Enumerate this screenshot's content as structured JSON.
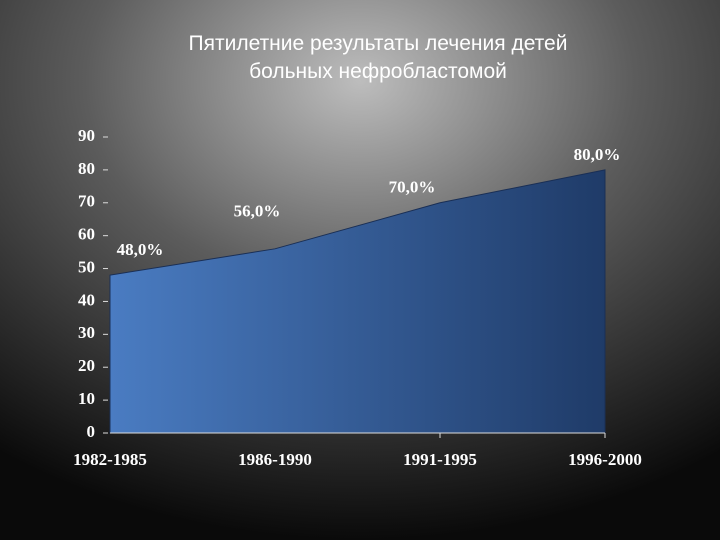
{
  "chart_data": {
    "type": "area",
    "title": [
      "Пятилетние результаты лечения детей",
      "больных нефробластомой"
    ],
    "categories": [
      "1982-1985",
      "1986-1990",
      "1991-1995",
      "1996-2000"
    ],
    "values": [
      48,
      56,
      70,
      80
    ],
    "value_labels": [
      "48,0%",
      "56,0%",
      "70,0%",
      "80,0%"
    ],
    "color": "#3f6eb0",
    "ylim": [
      0,
      90
    ],
    "yticks": [
      0,
      10,
      20,
      30,
      40,
      50,
      60,
      70,
      80,
      90
    ]
  }
}
